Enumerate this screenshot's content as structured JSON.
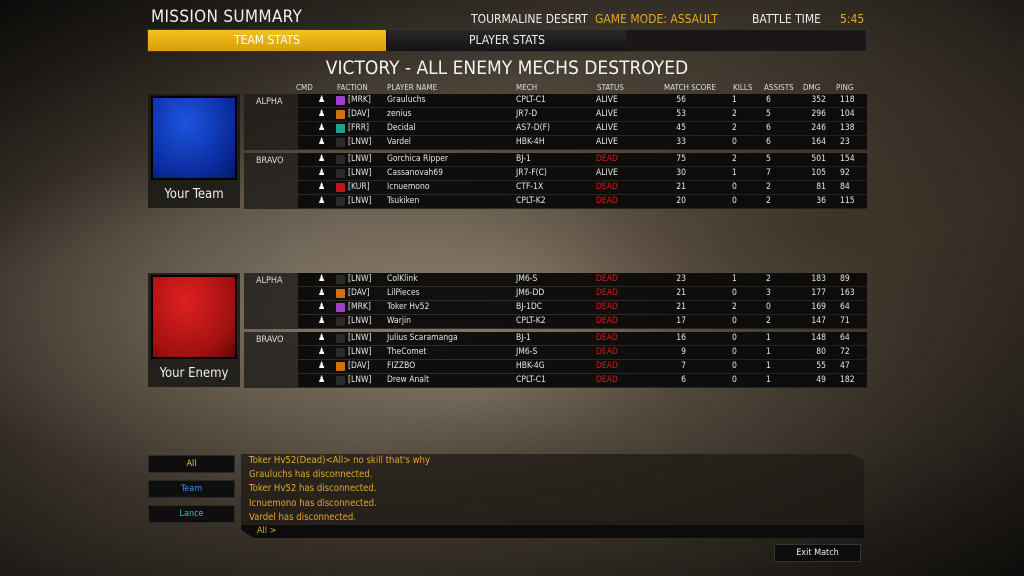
{
  "header": {
    "title": "MISSION SUMMARY",
    "map": "TOURMALINE DESERT",
    "game_mode": "GAME MODE: ASSAULT",
    "battle_time_label": "BATTLE TIME",
    "battle_time": "5:45"
  },
  "tabs": [
    {
      "label": "TEAM STATS",
      "active": true
    },
    {
      "label": "PLAYER STATS",
      "active": false
    }
  ],
  "result": "VICTORY - ALL ENEMY MECHS DESTROYED",
  "columns": [
    "CMD",
    "FACTION",
    "PLAYER NAME",
    "MECH",
    "STATUS",
    "MATCH SCORE",
    "KILLS",
    "ASSISTS",
    "DMG",
    "PING"
  ],
  "colors": {
    "accent": "#f4c21e",
    "dead": "#d51b1b",
    "chat": "#e5a72a",
    "team_chat": "#3a8ee6",
    "lance_chat": "#2fc9a8",
    "your_team": "#0a2a9a",
    "your_enemy": "#a01010"
  },
  "faction_colors": {
    "MRK": "#a040d0",
    "DAV": "#d07010",
    "FRR": "#20a090",
    "LNW": "#2a2a2a",
    "KUR": "#c01818"
  },
  "teams": [
    {
      "label": "Your Team",
      "flag": "blue",
      "lances": [
        {
          "name": "ALPHA",
          "players": [
            [
              "MRK",
              "Grauluchs",
              "CPLT-C1",
              "ALIVE",
              56,
              1,
              6,
              352,
              118
            ],
            [
              "DAV",
              "zenius",
              "JR7-D",
              "ALIVE",
              53,
              2,
              5,
              296,
              104
            ],
            [
              "FRR",
              "Decidal",
              "AS7-D(F)",
              "ALIVE",
              45,
              2,
              6,
              246,
              138
            ],
            [
              "LNW",
              "Vardel",
              "HBK-4H",
              "ALIVE",
              33,
              0,
              6,
              164,
              23
            ]
          ]
        },
        {
          "name": "BRAVO",
          "players": [
            [
              "LNW",
              "Gorchica Ripper",
              "BJ-1",
              "DEAD",
              75,
              2,
              5,
              501,
              154
            ],
            [
              "LNW",
              "Cassanovah69",
              "JR7-F(C)",
              "ALIVE",
              30,
              1,
              7,
              105,
              92
            ],
            [
              "KUR",
              "Icnuemono",
              "CTF-1X",
              "DEAD",
              21,
              0,
              2,
              81,
              84
            ],
            [
              "LNW",
              "Tsukiken",
              "CPLT-K2",
              "DEAD",
              20,
              0,
              2,
              36,
              115
            ]
          ]
        }
      ]
    },
    {
      "label": "Your Enemy",
      "flag": "red",
      "lances": [
        {
          "name": "ALPHA",
          "players": [
            [
              "LNW",
              "ColKlink",
              "JM6-S",
              "DEAD",
              23,
              1,
              2,
              183,
              89
            ],
            [
              "DAV",
              "LilPieces",
              "JM6-DD",
              "DEAD",
              21,
              0,
              3,
              177,
              163
            ],
            [
              "MRK",
              "Toker Hv52",
              "BJ-1DC",
              "DEAD",
              21,
              2,
              0,
              169,
              64
            ],
            [
              "LNW",
              "Warjin",
              "CPLT-K2",
              "DEAD",
              17,
              0,
              2,
              147,
              71
            ]
          ]
        },
        {
          "name": "BRAVO",
          "players": [
            [
              "LNW",
              "Julius Scaramanga",
              "BJ-1",
              "DEAD",
              16,
              0,
              1,
              148,
              64
            ],
            [
              "LNW",
              "TheComet",
              "JM6-S",
              "DEAD",
              9,
              0,
              1,
              80,
              72
            ],
            [
              "DAV",
              "FIZZBO",
              "HBK-4G",
              "DEAD",
              7,
              0,
              1,
              55,
              47
            ],
            [
              "LNW",
              "Drew Analt",
              "CPLT-C1",
              "DEAD",
              6,
              0,
              1,
              49,
              182
            ]
          ]
        }
      ]
    }
  ],
  "chat": {
    "channels": [
      "All",
      "Team",
      "Lance"
    ],
    "messages": [
      "Toker Hv52(Dead)<All> no skill that's why",
      "Grauluchs has disconnected.",
      "Toker Hv52 has disconnected.",
      "Icnuemono has disconnected.",
      "Vardel has disconnected."
    ],
    "input_prefix": "All >"
  },
  "exit_label": "Exit Match"
}
